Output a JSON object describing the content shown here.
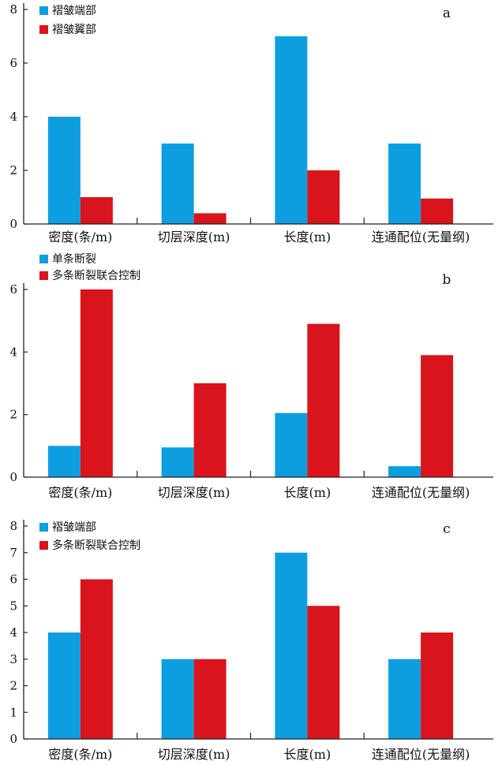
{
  "colors": {
    "blue": "#0d9ee0",
    "red": "#d9141c",
    "axis": "#222222"
  },
  "chart_data": [
    {
      "type": "bar",
      "panel_label": "a",
      "categories": [
        "密度(条/m)",
        "切层深度(m)",
        "长度(m)",
        "连通配位(无量纲)"
      ],
      "series": [
        {
          "name": "褶皱端部",
          "color": "#0d9ee0",
          "values": [
            4,
            3,
            7,
            3
          ]
        },
        {
          "name": "褶皱翼部",
          "color": "#d9141c",
          "values": [
            1,
            0.4,
            2,
            0.95
          ]
        }
      ],
      "ylim": [
        0,
        8
      ],
      "yticks": [
        0,
        2,
        4,
        6,
        8
      ],
      "legend_position": "top-left",
      "grid": false
    },
    {
      "type": "bar",
      "panel_label": "b",
      "categories": [
        "密度(条/m)",
        "切层深度(m)",
        "长度(m)",
        "连通配位(无量纲)"
      ],
      "series": [
        {
          "name": "单条断裂",
          "color": "#0d9ee0",
          "values": [
            1,
            0.95,
            2.05,
            0.35
          ]
        },
        {
          "name": "多条断裂联合控制",
          "color": "#d9141c",
          "values": [
            6,
            3,
            4.9,
            3.9
          ]
        }
      ],
      "ylim": [
        0,
        6
      ],
      "yticks": [
        0,
        2,
        4,
        6
      ],
      "legend_position": "top-left",
      "grid": false
    },
    {
      "type": "bar",
      "panel_label": "c",
      "categories": [
        "密度(条/m)",
        "切层深度(m)",
        "长度(m)",
        "连通配位(无量纲)"
      ],
      "series": [
        {
          "name": "褶皱端部",
          "color": "#0d9ee0",
          "values": [
            4,
            3,
            7,
            3
          ]
        },
        {
          "name": "多条断裂联合控制",
          "color": "#d9141c",
          "values": [
            6,
            3,
            5,
            4
          ]
        }
      ],
      "ylim": [
        0,
        8
      ],
      "yticks": [
        0,
        1,
        2,
        3,
        4,
        5,
        6,
        7,
        8
      ],
      "legend_position": "top-left",
      "grid": false
    }
  ]
}
